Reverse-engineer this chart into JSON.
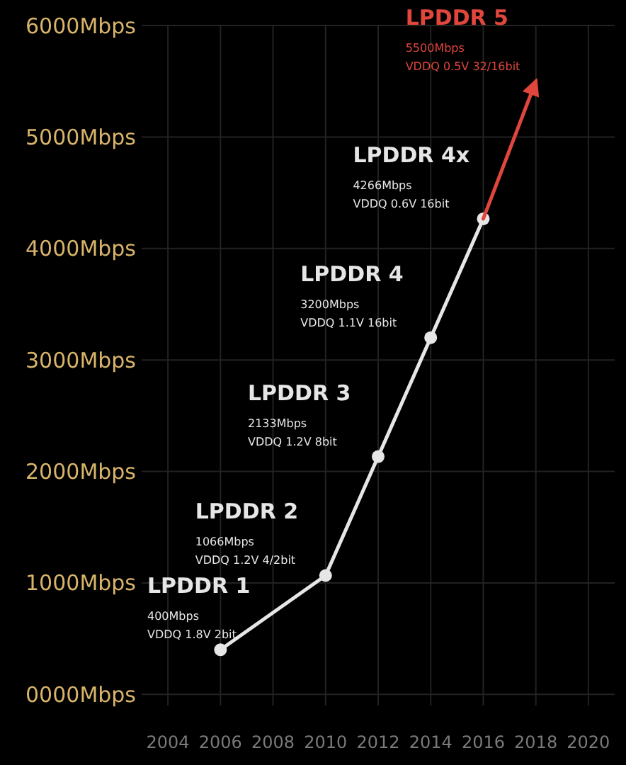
{
  "chart_data": {
    "type": "line",
    "xlim": [
      2003,
      2021
    ],
    "xticks": [
      2004,
      2006,
      2008,
      2010,
      2012,
      2014,
      2016,
      2018,
      2020
    ],
    "ylim": [
      -100,
      6000
    ],
    "yticks": [
      {
        "value": 0,
        "label": "0000Mbps"
      },
      {
        "value": 1000,
        "label": "1000Mbps"
      },
      {
        "value": 2000,
        "label": "2000Mbps"
      },
      {
        "value": 3000,
        "label": "3000Mbps"
      },
      {
        "value": 4000,
        "label": "4000Mbps"
      },
      {
        "value": 5000,
        "label": "5000Mbps"
      },
      {
        "value": 6000,
        "label": "6000Mbps"
      }
    ],
    "grid": true,
    "line_style": "solid",
    "series": [
      {
        "color": "#e6e6e6",
        "marker": "circle",
        "x": [
          2006,
          2010,
          2012,
          2014,
          2016
        ],
        "values": [
          400,
          1066,
          2133,
          3200,
          4266
        ]
      },
      {
        "color": "#e0463c",
        "marker": "none",
        "x": [
          2016,
          2018
        ],
        "values": [
          4266,
          5500
        ]
      }
    ],
    "annotations": [
      {
        "text": "LPDDR 1\n400Mbps\nVDDQ 1.8V 2bit",
        "x": 2006,
        "y": 400
      },
      {
        "text": "LPDDR 2\n1066Mbps\nVDDQ 1.2V 4/2bit",
        "x": 2010,
        "y": 1066
      },
      {
        "text": "LPDDR 3\n2133Mbps\nVDDQ 1.2V 8bit",
        "x": 2012,
        "y": 2133
      },
      {
        "text": "LPDDR 4\n3200Mbps\nVDDQ 1.1V 16bit",
        "x": 2014,
        "y": 3200
      },
      {
        "text": "LPDDR 4x\n4266Mbps\nVDDQ 0.6V 16bit",
        "x": 2016,
        "y": 4266
      },
      {
        "text": "LPDDR 5\n5500Mbps\nVDDQ 0.5V 32/16bit",
        "x": 2018,
        "y": 5500
      }
    ]
  }
}
